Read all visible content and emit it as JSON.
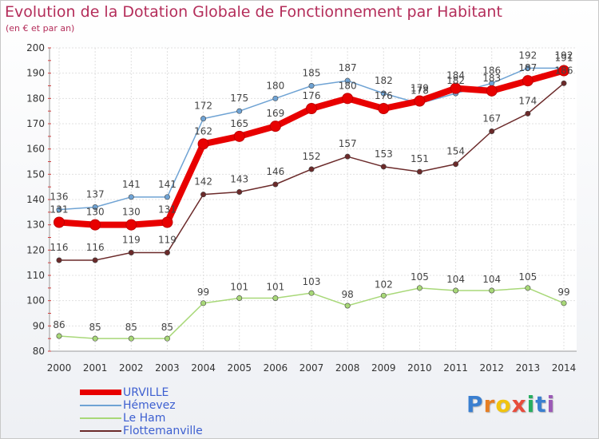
{
  "header": {
    "title": "Evolution de la Dotation Globale de Fonctionnement par Habitant",
    "subtitle": "(en € et par an)"
  },
  "brand": {
    "logo_text": "Proxiti"
  },
  "colors": {
    "title": "#b42d5a",
    "legend_text": "#3d5fd0",
    "grid": "#e0e0e0",
    "axis_text": "#333333"
  },
  "chart_data": {
    "type": "line",
    "title": "Evolution de la Dotation Globale de Fonctionnement par Habitant",
    "subtitle": "(en € et par an)",
    "xlabel": "",
    "ylabel": "",
    "categories": [
      "2000",
      "2001",
      "2002",
      "2003",
      "2004",
      "2005",
      "2006",
      "2007",
      "2008",
      "2009",
      "2010",
      "2011",
      "2012",
      "2013",
      "2014"
    ],
    "ylim": [
      80,
      200
    ],
    "yticks": [
      80,
      90,
      100,
      110,
      120,
      130,
      140,
      150,
      160,
      170,
      180,
      190,
      200
    ],
    "grid": true,
    "legend_position": "bottom-left",
    "series": [
      {
        "name": "URVILLE",
        "color": "#e80000",
        "values": [
          131,
          130,
          130,
          131,
          162,
          165,
          169,
          176,
          180,
          176,
          179,
          184,
          183,
          187,
          191
        ],
        "labels": [
          "131",
          "130",
          "130",
          "131",
          "162",
          "165",
          "169",
          "176",
          "180",
          "176",
          "179",
          "184",
          "183",
          "187",
          "191"
        ]
      },
      {
        "name": "Hémevez",
        "color": "#6fa3d4",
        "values": [
          136,
          137,
          141,
          141,
          172,
          175,
          180,
          185,
          187,
          182,
          178,
          182,
          186,
          192,
          192
        ],
        "labels": [
          "136",
          "137",
          "141",
          "141",
          "172",
          "175",
          "180",
          "185",
          "187",
          "182",
          "178",
          "182",
          "186",
          "192",
          "192"
        ]
      },
      {
        "name": "Le Ham",
        "color": "#a8d878",
        "values": [
          86,
          85,
          85,
          85,
          99,
          101,
          101,
          103,
          98,
          102,
          105,
          104,
          104,
          105,
          99
        ],
        "labels": [
          "86",
          "85",
          "85",
          "85",
          "99",
          "101",
          "101",
          "103",
          "98",
          "102",
          "105",
          "104",
          "104",
          "105",
          "99"
        ]
      },
      {
        "name": "Flottemanville",
        "color": "#6b2a2a",
        "values": [
          116,
          116,
          119,
          119,
          142,
          143,
          146,
          152,
          157,
          153,
          151,
          154,
          167,
          174,
          186
        ],
        "labels": [
          "116",
          "116",
          "119",
          "119",
          "142",
          "143",
          "146",
          "152",
          "157",
          "153",
          "151",
          "154",
          "167",
          "174",
          "186"
        ]
      }
    ]
  }
}
